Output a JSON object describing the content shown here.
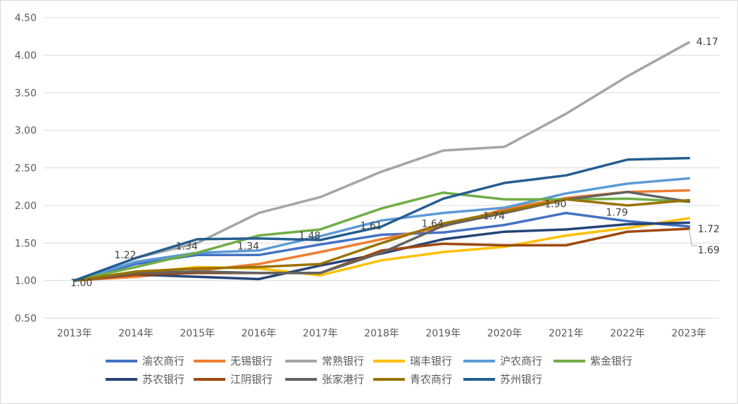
{
  "chart_data": {
    "type": "line",
    "title": "",
    "xlabel": "",
    "ylabel": "",
    "categories": [
      "2013年",
      "2014年",
      "2015年",
      "2016年",
      "2017年",
      "2018年",
      "2019年",
      "2020年",
      "2021年",
      "2022年",
      "2023年"
    ],
    "ylim": [
      0.5,
      4.5
    ],
    "yticks": [
      "0.50",
      "1.00",
      "1.50",
      "2.00",
      "2.50",
      "3.00",
      "3.50",
      "4.00",
      "4.50"
    ],
    "grid": true,
    "legend_position": "bottom",
    "series": [
      {
        "name": "渝农商行",
        "color": "#4472C4",
        "values": [
          1.0,
          1.22,
          1.34,
          1.34,
          1.48,
          1.61,
          1.64,
          1.74,
          1.9,
          1.79,
          1.72
        ]
      },
      {
        "name": "无锡银行",
        "color": "#ED7D31",
        "values": [
          1.0,
          1.05,
          1.13,
          1.22,
          1.38,
          1.55,
          1.72,
          1.95,
          2.1,
          2.18,
          2.2
        ]
      },
      {
        "name": "常熟银行",
        "color": "#A5A5A5",
        "values": [
          1.0,
          1.3,
          1.5,
          1.9,
          2.11,
          2.45,
          2.73,
          2.78,
          3.22,
          3.72,
          4.17
        ]
      },
      {
        "name": "瑞丰银行",
        "color": "#FFC000",
        "values": [
          1.0,
          1.1,
          1.18,
          1.16,
          1.07,
          1.27,
          1.38,
          1.45,
          1.6,
          1.7,
          1.83
        ]
      },
      {
        "name": "沪农商行",
        "color": "#5B9BD5",
        "values": [
          1.0,
          1.25,
          1.37,
          1.4,
          1.59,
          1.8,
          1.9,
          1.97,
          2.16,
          2.29,
          2.36
        ]
      },
      {
        "name": "紫金银行",
        "color": "#70AD47",
        "values": [
          1.0,
          1.18,
          1.37,
          1.6,
          1.68,
          1.96,
          2.17,
          2.08,
          2.08,
          2.09,
          2.05
        ]
      },
      {
        "name": "苏农银行",
        "color": "#264478",
        "values": [
          1.0,
          1.08,
          1.05,
          1.02,
          1.2,
          1.36,
          1.55,
          1.65,
          1.68,
          1.75,
          1.77
        ]
      },
      {
        "name": "江阴银行",
        "color": "#9E480E",
        "values": [
          1.0,
          1.08,
          1.1,
          1.1,
          1.1,
          1.4,
          1.49,
          1.47,
          1.47,
          1.65,
          1.69
        ]
      },
      {
        "name": "张家港行",
        "color": "#636363",
        "values": [
          1.0,
          1.1,
          1.12,
          1.1,
          1.1,
          1.37,
          1.73,
          1.9,
          2.08,
          2.18,
          2.05
        ]
      },
      {
        "name": "青农商行",
        "color": "#997300",
        "values": [
          1.0,
          1.12,
          1.16,
          1.18,
          1.22,
          1.5,
          1.76,
          1.92,
          2.08,
          2.0,
          2.07
        ]
      },
      {
        "name": "苏州银行",
        "color": "#255E91",
        "values": [
          1.0,
          1.3,
          1.55,
          1.56,
          1.54,
          1.72,
          2.09,
          2.3,
          2.4,
          2.61,
          2.63
        ]
      }
    ],
    "data_labels": [
      {
        "series": "渝农商行",
        "index": 0,
        "text": "1.00"
      },
      {
        "series": "渝农商行",
        "index": 1,
        "text": "1.22"
      },
      {
        "series": "渝农商行",
        "index": 2,
        "text": "1.34"
      },
      {
        "series": "渝农商行",
        "index": 3,
        "text": "1.34"
      },
      {
        "series": "渝农商行",
        "index": 4,
        "text": "1.48"
      },
      {
        "series": "渝农商行",
        "index": 5,
        "text": "1.61"
      },
      {
        "series": "渝农商行",
        "index": 6,
        "text": "1.64"
      },
      {
        "series": "渝农商行",
        "index": 7,
        "text": "1.74"
      },
      {
        "series": "渝农商行",
        "index": 8,
        "text": "1.90"
      },
      {
        "series": "渝农商行",
        "index": 9,
        "text": "1.79"
      },
      {
        "series": "渝农商行",
        "index": 10,
        "text": "1.72"
      },
      {
        "series": "常熟银行",
        "index": 10,
        "text": "4.17"
      },
      {
        "series": "江阴银行",
        "index": 10,
        "text": "1.69"
      }
    ]
  }
}
